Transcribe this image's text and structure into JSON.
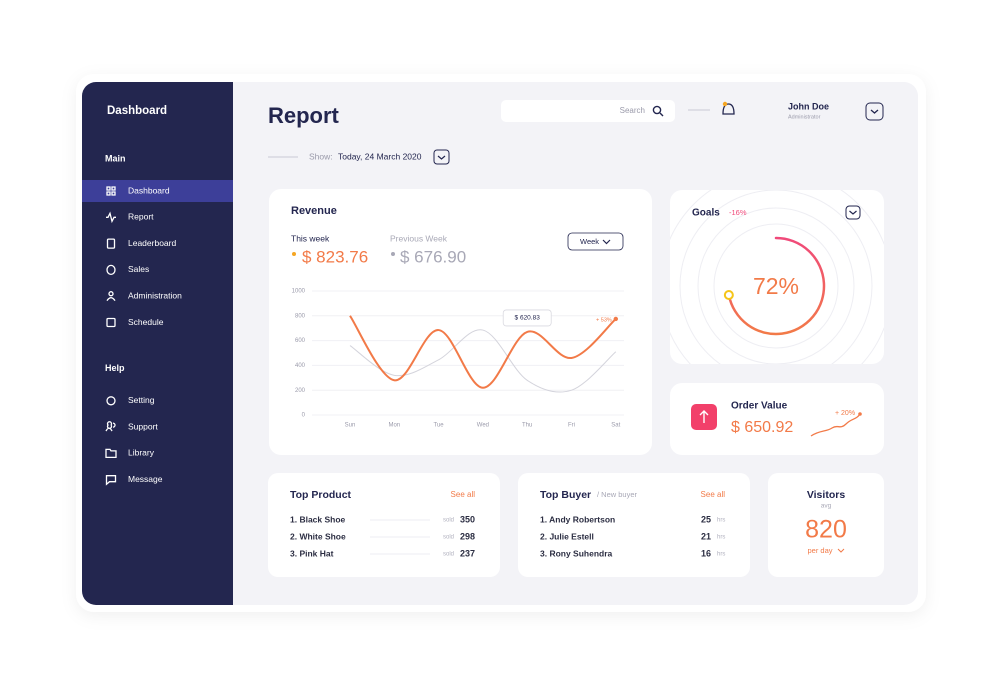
{
  "sidebar": {
    "title": "Dashboard",
    "sections": [
      {
        "heading": "Main",
        "items": [
          "Dashboard",
          "Report",
          "Leaderboard",
          "Sales",
          "Administration",
          "Schedule"
        ]
      },
      {
        "heading": "Help",
        "items": [
          "Setting",
          "Support",
          "Library",
          "Message"
        ]
      }
    ]
  },
  "header": {
    "title": "Report",
    "search": "Search",
    "user": {
      "name": "John Doe",
      "role": "Administrator"
    },
    "show_label": "Show:",
    "date": "Today, 24 March 2020"
  },
  "revenue": {
    "title": "Revenue",
    "totals": [
      "$ 823.76",
      "$ 676.90"
    ],
    "period": "Week",
    "tooltip": "$ 620.83",
    "change": "+ 53%",
    "chart_data": {
      "type": "line",
      "categories": [
        "Sun",
        "Mon",
        "Tue",
        "Wed",
        "Thu",
        "Fri",
        "Sat"
      ],
      "series": [
        {
          "name": "This week",
          "color": "#f27a48",
          "values": [
            800,
            280,
            685,
            220,
            670,
            460,
            775
          ]
        },
        {
          "name": "Previous Week",
          "color": "#d4d4dc",
          "values": [
            560,
            320,
            445,
            685,
            280,
            200,
            510
          ]
        }
      ],
      "ylim": [
        0,
        1000
      ],
      "yticks": [
        0,
        200,
        400,
        600,
        800,
        1000
      ]
    }
  },
  "goals": {
    "title": "Goals",
    "change": "-16%",
    "value": 72,
    "value_label": "72%"
  },
  "order_value": {
    "title": "Order Value",
    "value": "$ 650.92",
    "change": "+ 20%"
  },
  "top_product": {
    "title": "Top Product",
    "link": "See all",
    "unit": "sold",
    "rows": [
      {
        "name": "1. Black Shoe",
        "value": 350
      },
      {
        "name": "2. White Shoe",
        "value": 298
      },
      {
        "name": "3. Pink Hat",
        "value": 237
      }
    ]
  },
  "top_buyer": {
    "title": "Top Buyer",
    "subtitle": "/ New buyer",
    "link": "See all",
    "unit": "hrs",
    "rows": [
      {
        "name": "1. Andy Robertson",
        "value": 25
      },
      {
        "name": "2. Julie Estell",
        "value": 21
      },
      {
        "name": "3. Rony Suhendra",
        "value": 16
      }
    ]
  },
  "visitors": {
    "title": "Visitors",
    "subtitle": "avg",
    "value": 820,
    "period": "per day"
  }
}
